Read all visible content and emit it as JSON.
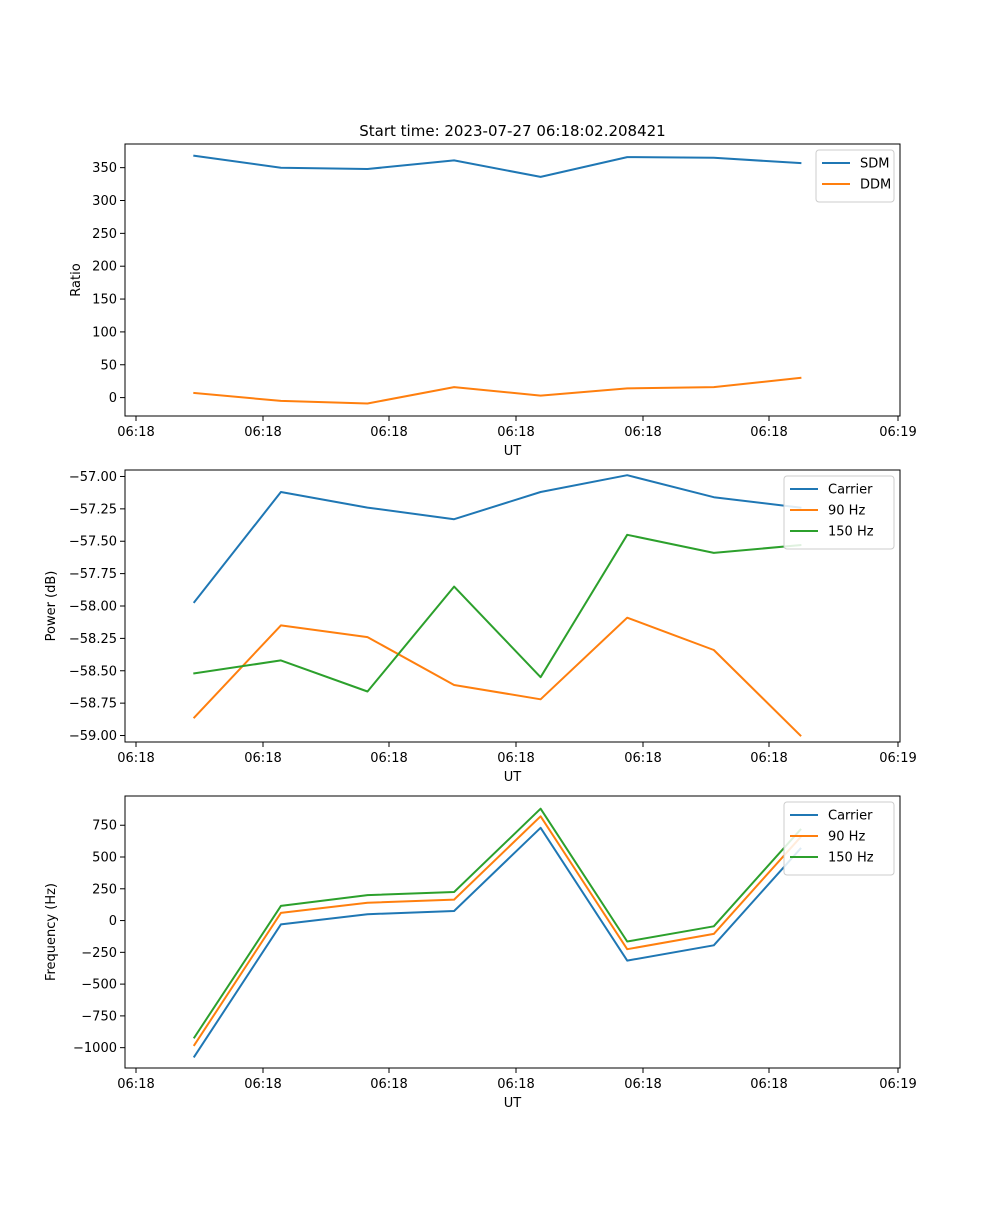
{
  "chart_data": [
    {
      "type": "line",
      "title": "Start time: 2023-07-27 06:18:02.208421",
      "xlabel": "UT",
      "ylabel": "Ratio",
      "xticks": [
        "06:18",
        "06:18",
        "06:18",
        "06:18",
        "06:18",
        "06:18",
        "06:19"
      ],
      "x": [
        1,
        2,
        3,
        4,
        5,
        6,
        7,
        8
      ],
      "xlim": [
        0.2,
        9.15
      ],
      "ylim": [
        -28,
        386
      ],
      "yticks": [
        0,
        50,
        100,
        150,
        200,
        250,
        300,
        350
      ],
      "yticklabels": [
        "0",
        "50",
        "100",
        "150",
        "200",
        "250",
        "300",
        "350"
      ],
      "legend_loc": "upper right",
      "series": [
        {
          "name": "SDM",
          "color": "#1f77b4",
          "values": [
            368,
            350,
            348,
            361,
            336,
            366,
            365,
            357
          ]
        },
        {
          "name": "DDM",
          "color": "#ff7f0e",
          "values": [
            7,
            -5,
            -9,
            16,
            3,
            14,
            16,
            30
          ]
        }
      ]
    },
    {
      "type": "line",
      "title": "",
      "xlabel": "UT",
      "ylabel": "Power (dB)",
      "xticks": [
        "06:18",
        "06:18",
        "06:18",
        "06:18",
        "06:18",
        "06:18",
        "06:19"
      ],
      "x": [
        1,
        2,
        3,
        4,
        5,
        6,
        7,
        8
      ],
      "xlim": [
        0.2,
        9.15
      ],
      "ylim": [
        -59.05,
        -56.95
      ],
      "yticks": [
        -59.0,
        -58.75,
        -58.5,
        -58.25,
        -58.0,
        -57.75,
        -57.5,
        -57.25,
        -57.0
      ],
      "yticklabels": [
        "−59.00",
        "−58.75",
        "−58.50",
        "−58.25",
        "−58.00",
        "−57.75",
        "−57.50",
        "−57.25",
        "−57.00"
      ],
      "legend_loc": "upper right",
      "series": [
        {
          "name": "Carrier",
          "color": "#1f77b4",
          "values": [
            -57.97,
            -57.12,
            -57.24,
            -57.33,
            -57.12,
            -56.99,
            -57.16,
            -57.24
          ]
        },
        {
          "name": "90 Hz",
          "color": "#ff7f0e",
          "values": [
            -58.86,
            -58.15,
            -58.24,
            -58.61,
            -58.72,
            -58.09,
            -58.34,
            -59.0
          ]
        },
        {
          "name": "150 Hz",
          "color": "#2ca02c",
          "values": [
            -58.52,
            -58.42,
            -58.66,
            -57.85,
            -58.55,
            -57.45,
            -57.59,
            -57.53
          ]
        }
      ]
    },
    {
      "type": "line",
      "title": "",
      "xlabel": "UT",
      "ylabel": "Frequency (Hz)",
      "xticks": [
        "06:18",
        "06:18",
        "06:18",
        "06:18",
        "06:18",
        "06:18",
        "06:19"
      ],
      "x": [
        1,
        2,
        3,
        4,
        5,
        6,
        7,
        8
      ],
      "xlim": [
        0.2,
        9.15
      ],
      "ylim": [
        -1160,
        980
      ],
      "yticks": [
        -1000,
        -750,
        -500,
        -250,
        0,
        250,
        500,
        750
      ],
      "yticklabels": [
        "−1000",
        "−750",
        "−500",
        "−250",
        "0",
        "250",
        "500",
        "750"
      ],
      "legend_loc": "upper right",
      "series": [
        {
          "name": "Carrier",
          "color": "#1f77b4",
          "values": [
            -1070,
            -30,
            50,
            75,
            730,
            -315,
            -195,
            565
          ]
        },
        {
          "name": "90 Hz",
          "color": "#ff7f0e",
          "values": [
            -980,
            60,
            140,
            165,
            820,
            -225,
            -105,
            655
          ]
        },
        {
          "name": "150 Hz",
          "color": "#2ca02c",
          "values": [
            -920,
            115,
            200,
            225,
            880,
            -165,
            -45,
            715
          ]
        }
      ]
    }
  ]
}
